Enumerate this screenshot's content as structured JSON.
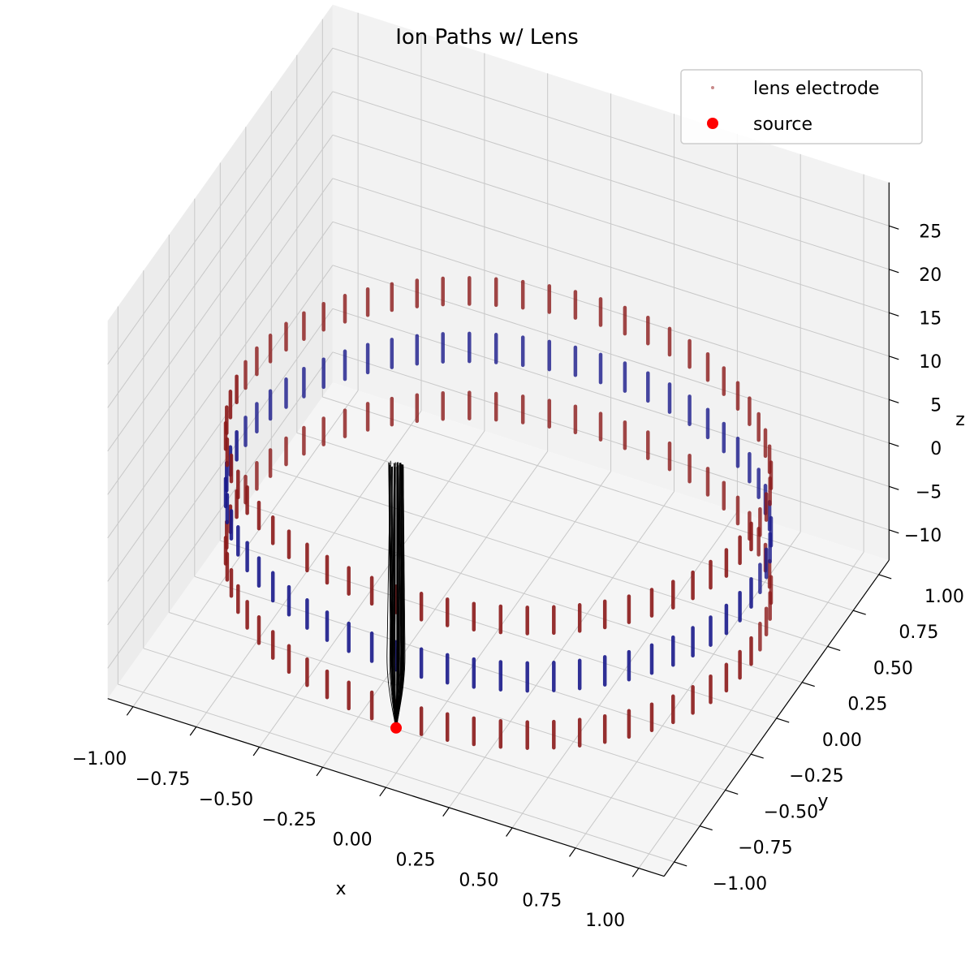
{
  "chart_data": {
    "type": "scatter",
    "projection": "3d",
    "title": "Ion Paths w/ Lens",
    "xlabel": "x",
    "ylabel": "y",
    "zlabel": "z",
    "xlim": [
      -1.1,
      1.1
    ],
    "ylim": [
      -1.1,
      1.1
    ],
    "zlim": [
      -13.5,
      30
    ],
    "grid": true,
    "legend_position": "top-right",
    "x_ticks": [
      "−1.00",
      "−0.75",
      "−0.50",
      "−0.25",
      "0.00",
      "0.25",
      "0.50",
      "0.75",
      "1.00"
    ],
    "y_ticks": [
      "−1.00",
      "−0.75",
      "−0.50",
      "−0.25",
      "0.00",
      "0.25",
      "0.50",
      "0.75",
      "1.00"
    ],
    "z_ticks": [
      "−10",
      "−5",
      "0",
      "5",
      "10",
      "15",
      "20",
      "25"
    ],
    "series": [
      {
        "name": "lens electrode",
        "kind": "ring-electrodes",
        "radius": 1.0,
        "segments_per_ring": 64,
        "rings": [
          {
            "z_bottom": -8.2,
            "z_top": -5.2,
            "color": "#8b1a1a"
          },
          {
            "z_bottom": -1.6,
            "z_top": 1.6,
            "color": "#1a1a8b"
          },
          {
            "z_bottom": 5.0,
            "z_top": 8.0,
            "color": "#8b1a1a"
          }
        ]
      },
      {
        "name": "source",
        "kind": "point",
        "x": 0.0,
        "y": -1.0,
        "z": -8.3,
        "color": "#ff0000"
      },
      {
        "name": "",
        "kind": "ion-paths",
        "color": "#000000",
        "count": 40,
        "start": [
          0.0,
          -1.0,
          -8.3
        ],
        "z_end": 22.0,
        "max_bulge": 0.035,
        "end_spread": 0.03
      }
    ]
  }
}
